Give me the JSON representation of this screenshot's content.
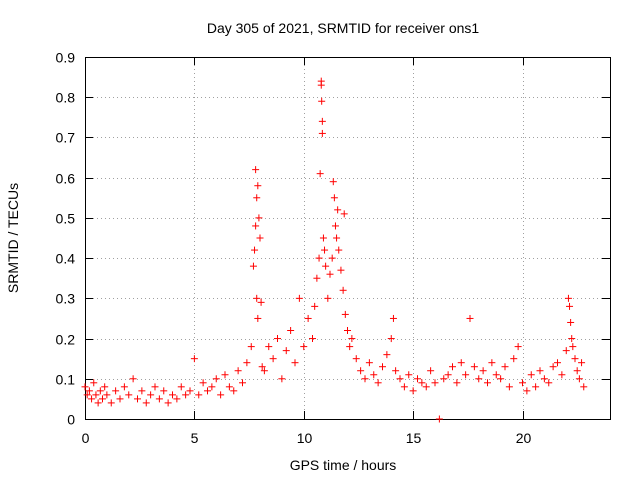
{
  "chart_data": {
    "type": "scatter",
    "title": "Day 305 of 2021, SRMTID for receiver ons1",
    "xlabel": "GPS time / hours",
    "ylabel": "SRMTID / TECUs",
    "xlim": [
      0,
      24
    ],
    "ylim": [
      0,
      0.9
    ],
    "xticks": [
      "0",
      "5",
      "10",
      "15",
      "20"
    ],
    "yticks": [
      "0",
      "0.1",
      "0.2",
      "0.3",
      "0.4",
      "0.5",
      "0.6",
      "0.7",
      "0.8",
      "0.9"
    ],
    "grid": true,
    "marker": "+",
    "colors": {
      "points": "#ff0000"
    },
    "series": [
      {
        "name": "SRMTID",
        "x": [
          0.0,
          0.1,
          0.2,
          0.3,
          0.4,
          0.5,
          0.6,
          0.7,
          0.8,
          0.9,
          1.0,
          1.2,
          1.4,
          1.6,
          1.8,
          2.0,
          2.2,
          2.4,
          2.6,
          2.8,
          3.0,
          3.2,
          3.4,
          3.6,
          3.8,
          4.0,
          4.2,
          4.4,
          4.6,
          4.8,
          5.0,
          5.2,
          5.4,
          5.6,
          5.8,
          6.0,
          6.2,
          6.4,
          6.6,
          6.8,
          7.0,
          7.2,
          7.4,
          7.6,
          7.7,
          7.75,
          7.8,
          7.8,
          7.85,
          7.85,
          7.9,
          7.9,
          7.95,
          8.0,
          8.05,
          8.1,
          8.2,
          8.4,
          8.6,
          8.8,
          9.0,
          9.2,
          9.4,
          9.6,
          9.8,
          10.0,
          10.2,
          10.4,
          10.5,
          10.6,
          10.7,
          10.75,
          10.8,
          10.8,
          10.82,
          10.85,
          10.85,
          10.9,
          10.95,
          11.0,
          11.1,
          11.2,
          11.3,
          11.35,
          11.4,
          11.45,
          11.5,
          11.55,
          11.6,
          11.7,
          11.8,
          11.85,
          11.9,
          12.0,
          12.1,
          12.2,
          12.4,
          12.6,
          12.8,
          13.0,
          13.2,
          13.4,
          13.6,
          13.8,
          14.0,
          14.1,
          14.2,
          14.4,
          14.6,
          14.8,
          15.0,
          15.2,
          15.4,
          15.6,
          15.8,
          16.0,
          16.2,
          16.4,
          16.6,
          16.8,
          17.0,
          17.2,
          17.4,
          17.6,
          17.8,
          18.0,
          18.2,
          18.4,
          18.6,
          18.8,
          19.0,
          19.2,
          19.4,
          19.6,
          19.8,
          20.0,
          20.2,
          20.4,
          20.6,
          20.8,
          21.0,
          21.2,
          21.4,
          21.6,
          21.8,
          22.0,
          22.1,
          22.15,
          22.2,
          22.25,
          22.3,
          22.4,
          22.5,
          22.6,
          22.7,
          22.8
        ],
        "y": [
          0.08,
          0.06,
          0.07,
          0.05,
          0.09,
          0.06,
          0.04,
          0.07,
          0.05,
          0.08,
          0.06,
          0.04,
          0.07,
          0.05,
          0.08,
          0.06,
          0.1,
          0.05,
          0.07,
          0.04,
          0.06,
          0.08,
          0.05,
          0.07,
          0.04,
          0.06,
          0.05,
          0.08,
          0.06,
          0.07,
          0.15,
          0.06,
          0.09,
          0.07,
          0.08,
          0.1,
          0.06,
          0.11,
          0.08,
          0.07,
          0.12,
          0.09,
          0.14,
          0.18,
          0.38,
          0.42,
          0.48,
          0.62,
          0.55,
          0.3,
          0.58,
          0.25,
          0.5,
          0.45,
          0.29,
          0.13,
          0.12,
          0.18,
          0.15,
          0.2,
          0.1,
          0.17,
          0.22,
          0.14,
          0.3,
          0.18,
          0.25,
          0.2,
          0.28,
          0.35,
          0.4,
          0.61,
          0.84,
          0.83,
          0.79,
          0.74,
          0.71,
          0.45,
          0.42,
          0.38,
          0.3,
          0.36,
          0.4,
          0.59,
          0.55,
          0.48,
          0.45,
          0.52,
          0.42,
          0.37,
          0.32,
          0.51,
          0.26,
          0.22,
          0.18,
          0.2,
          0.15,
          0.12,
          0.1,
          0.14,
          0.11,
          0.09,
          0.13,
          0.16,
          0.2,
          0.25,
          0.12,
          0.1,
          0.08,
          0.11,
          0.07,
          0.1,
          0.09,
          0.08,
          0.12,
          0.09,
          0.0,
          0.1,
          0.11,
          0.13,
          0.09,
          0.14,
          0.11,
          0.25,
          0.13,
          0.1,
          0.12,
          0.09,
          0.14,
          0.11,
          0.1,
          0.13,
          0.08,
          0.15,
          0.18,
          0.09,
          0.07,
          0.11,
          0.08,
          0.12,
          0.1,
          0.09,
          0.13,
          0.14,
          0.11,
          0.17,
          0.3,
          0.28,
          0.24,
          0.2,
          0.18,
          0.15,
          0.12,
          0.1,
          0.14,
          0.08
        ]
      }
    ]
  }
}
